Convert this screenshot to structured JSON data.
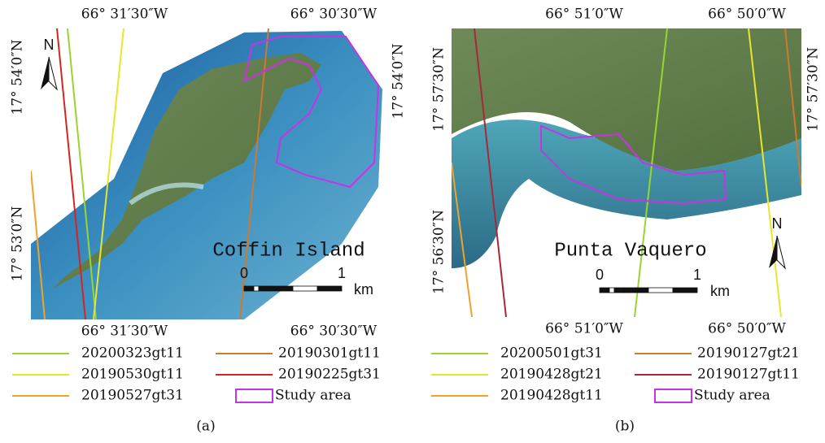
{
  "panels": [
    {
      "label": "(a)",
      "place": "Coffin Island",
      "north": "N",
      "top_labels": [
        "66° 31′30″W",
        "66° 30′30″W"
      ],
      "bottom_labels": [
        "66° 31′30″W",
        "66° 30′30″W"
      ],
      "left_labels": [
        "17° 54′0″N",
        "17° 53′0″N"
      ],
      "right_labels": [
        "17° 54′0″N"
      ],
      "scale": [
        "0",
        "1",
        "km"
      ],
      "legend": [
        {
          "name": "20200323gt11",
          "color": "#9ad430"
        },
        {
          "name": "20190530gt11",
          "color": "#e6e62a"
        },
        {
          "name": "20190527gt31",
          "color": "#f0a22c"
        },
        {
          "name": "20190301gt11",
          "color": "#cc7a30"
        },
        {
          "name": "20190225gt31",
          "color": "#d42424"
        },
        {
          "name": "Study area",
          "color": "#c832e6"
        }
      ]
    },
    {
      "label": "(b)",
      "place": "Punta Vaquero",
      "north": "N",
      "top_labels": [
        "66° 51′0″W",
        "66° 50′0″W"
      ],
      "bottom_labels": [
        "66° 51′0″W",
        "66° 50′0″W"
      ],
      "left_labels": [
        "17° 57′30″N",
        "17° 56′30″N"
      ],
      "right_labels": [
        "17° 57′30″N"
      ],
      "scale": [
        "0",
        "1",
        "km"
      ],
      "legend": [
        {
          "name": "20200501gt31",
          "color": "#9ad430"
        },
        {
          "name": "20190428gt21",
          "color": "#e6e62a"
        },
        {
          "name": "20190428gt11",
          "color": "#f0a22c"
        },
        {
          "name": "20190127gt21",
          "color": "#cc7a30"
        },
        {
          "name": "20190127gt11",
          "color": "#a82838"
        },
        {
          "name": "Study area",
          "color": "#c832e6"
        }
      ]
    }
  ]
}
